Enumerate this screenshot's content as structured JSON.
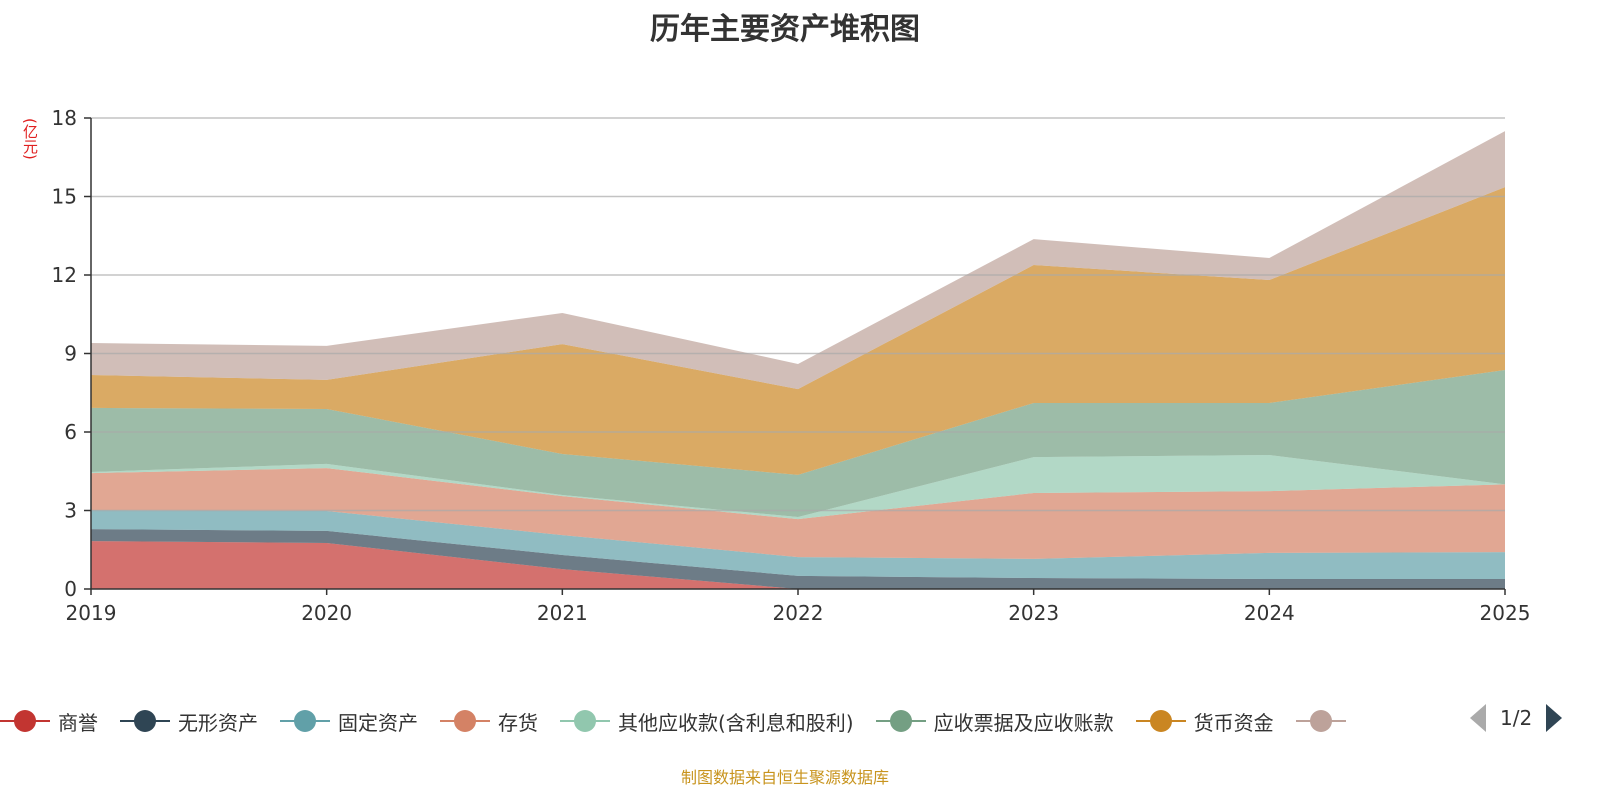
{
  "chart_data": {
    "type": "area",
    "stacked": true,
    "title": "历年主要资产堆积图",
    "ylabel": "(亿元)",
    "xlabel": "",
    "ylim": [
      0,
      18
    ],
    "yticks": [
      "0",
      "3",
      "6",
      "9",
      "12",
      "15",
      "18"
    ],
    "yticks_values": [
      0,
      3,
      6,
      9,
      12,
      15,
      18
    ],
    "categories": [
      "2019",
      "2020",
      "2021",
      "2022",
      "2023",
      "2024",
      "2025"
    ],
    "grid": true,
    "legend_position": "bottom",
    "series": [
      {
        "name": "商誉",
        "color": "#c23531",
        "values": [
          1.83,
          1.76,
          0.76,
          0,
          0,
          0,
          0
        ]
      },
      {
        "name": "无形资产",
        "color": "#2f4554",
        "values": [
          0.46,
          0.46,
          0.54,
          0.5,
          0.42,
          0.38,
          0.38
        ]
      },
      {
        "name": "固定资产",
        "color": "#61a0a8",
        "values": [
          0.73,
          0.76,
          0.76,
          0.72,
          0.73,
          1.0,
          1.03
        ]
      },
      {
        "name": "存货",
        "color": "#d48265",
        "values": [
          1.41,
          1.64,
          1.49,
          1.45,
          2.52,
          2.36,
          2.59
        ]
      },
      {
        "name": "其他应收款(含利息和股利)",
        "color": "#91c7ae",
        "values": [
          0.04,
          0.16,
          0.04,
          0.08,
          1.37,
          1.38,
          0.0
        ]
      },
      {
        "name": "应收票据及应收账款",
        "color": "#749f83",
        "values": [
          2.45,
          2.1,
          1.57,
          1.61,
          2.07,
          1.99,
          4.37
        ]
      },
      {
        "name": "货币资金",
        "color": "#ca8622",
        "values": [
          1.26,
          1.11,
          4.2,
          3.28,
          5.27,
          4.7,
          6.99
        ]
      },
      {
        "name": "",
        "color": "#bda29a",
        "values": [
          1.22,
          1.3,
          1.19,
          0.96,
          0.99,
          0.84,
          2.14
        ]
      }
    ]
  },
  "legend_pager": "1/2",
  "source": "制图数据来自恒生聚源数据库"
}
